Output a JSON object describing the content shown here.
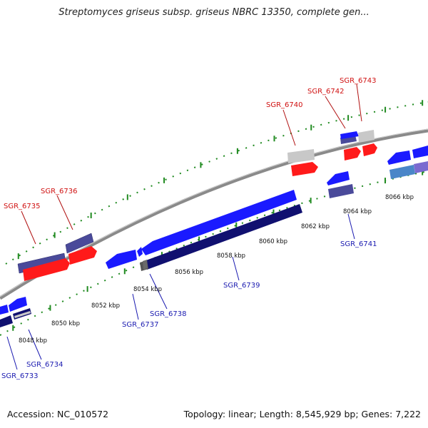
{
  "title": "Streptomyces griseus subsp. griseus NBRC 13350, complete gen...",
  "footer": {
    "accession": "Accession: NC_010572",
    "summary": "Topology: linear; Length: 8,545,929 bp; Genes: 7,222"
  },
  "colors": {
    "axis": "#8a8a8a",
    "ticks": "#1f8a1f",
    "forward_label": "#d01010",
    "reverse_label": "#1a1ab0",
    "red_gene": "#ff1a1a",
    "blue_gene": "#1a1aff",
    "navy_gene": "#101070",
    "slate_gene": "#4a4a9a",
    "gray_gene": "#c8c8c8",
    "steel_gene": "#4a86c8",
    "lavender_gene": "#7a6ad0"
  },
  "kbp_labels": [
    "8048 kbp",
    "8050 kbp",
    "8052 kbp",
    "8054 kbp",
    "8056 kbp",
    "8058 kbp",
    "8060 kbp",
    "8062 kbp",
    "8064 kbp",
    "8066 kbp"
  ],
  "forward_gene_labels": [
    "SGR_6735",
    "SGR_6736",
    "SGR_6740",
    "SGR_6742",
    "SGR_6743"
  ],
  "reverse_gene_labels": [
    "SGR_6733",
    "SGR_6734",
    "SGR_6737",
    "SGR_6738",
    "SGR_6739",
    "SGR_6741"
  ]
}
